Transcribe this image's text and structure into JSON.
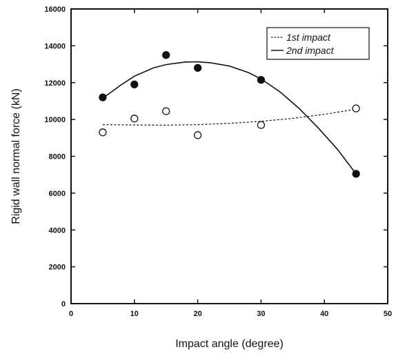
{
  "chart_data": {
    "type": "scatter",
    "title": "",
    "xlabel": "Impact angle (degree)",
    "ylabel": "Rigid wall normal force (kN)",
    "xlim": [
      0,
      50
    ],
    "ylim": [
      0,
      16000
    ],
    "x_ticks": [
      "0",
      "10",
      "20",
      "30",
      "40",
      "50"
    ],
    "y_ticks": [
      "0",
      "2000",
      "4000",
      "6000",
      "8000",
      "10000",
      "12000",
      "14000",
      "16000"
    ],
    "grid": false,
    "legend_position": "top-right",
    "series": [
      {
        "name": "1st impact",
        "marker": "open-circle",
        "line_style": "dashed",
        "points": [
          {
            "x": 5,
            "y": 9300
          },
          {
            "x": 10,
            "y": 10050
          },
          {
            "x": 15,
            "y": 10450
          },
          {
            "x": 20,
            "y": 9150
          },
          {
            "x": 30,
            "y": 9700
          },
          {
            "x": 45,
            "y": 10600
          }
        ],
        "fit": [
          {
            "x": 5,
            "y": 9720
          },
          {
            "x": 10,
            "y": 9700
          },
          {
            "x": 15,
            "y": 9690
          },
          {
            "x": 20,
            "y": 9720
          },
          {
            "x": 25,
            "y": 9790
          },
          {
            "x": 30,
            "y": 9900
          },
          {
            "x": 35,
            "y": 10060
          },
          {
            "x": 40,
            "y": 10280
          },
          {
            "x": 45,
            "y": 10560
          }
        ]
      },
      {
        "name": "2nd impact",
        "marker": "filled-circle",
        "line_style": "solid",
        "points": [
          {
            "x": 5,
            "y": 11200
          },
          {
            "x": 10,
            "y": 11900
          },
          {
            "x": 15,
            "y": 13500
          },
          {
            "x": 20,
            "y": 12800
          },
          {
            "x": 30,
            "y": 12150
          },
          {
            "x": 45,
            "y": 7050
          }
        ],
        "fit": [
          {
            "x": 5,
            "y": 11150
          },
          {
            "x": 8,
            "y": 11900
          },
          {
            "x": 10,
            "y": 12350
          },
          {
            "x": 13,
            "y": 12800
          },
          {
            "x": 15,
            "y": 12980
          },
          {
            "x": 18,
            "y": 13120
          },
          {
            "x": 20,
            "y": 13130
          },
          {
            "x": 22,
            "y": 13080
          },
          {
            "x": 25,
            "y": 12900
          },
          {
            "x": 28,
            "y": 12550
          },
          {
            "x": 30,
            "y": 12200
          },
          {
            "x": 33,
            "y": 11500
          },
          {
            "x": 36,
            "y": 10600
          },
          {
            "x": 39,
            "y": 9550
          },
          {
            "x": 42,
            "y": 8400
          },
          {
            "x": 45,
            "y": 7050
          }
        ]
      }
    ]
  }
}
